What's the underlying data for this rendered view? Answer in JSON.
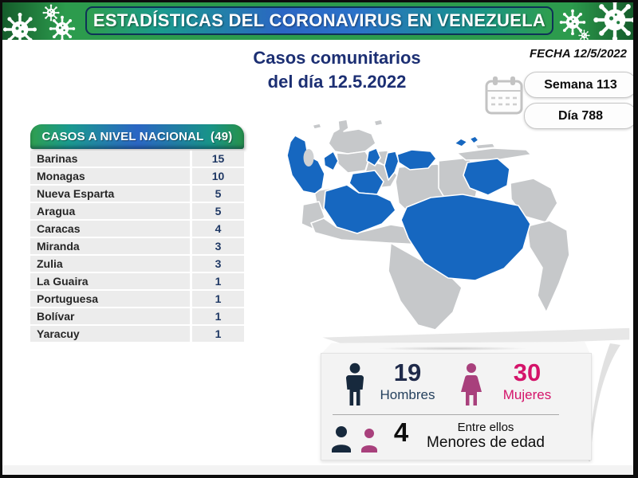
{
  "header": {
    "title": "ESTADÍSTICAS DEL CORONAVIRUS EN VENEZUELA"
  },
  "titles": {
    "line1": "Casos comunitarios",
    "line2": "del día 12.5.2022"
  },
  "meta": {
    "fecha": "FECHA 12/5/2022",
    "semana": "Semana 113",
    "dia": "Día 788"
  },
  "table": {
    "title": "CASOS A NIVEL NACIONAL  (49)",
    "total": 49,
    "rows": [
      {
        "state": "Barinas",
        "cases": 15
      },
      {
        "state": "Monagas",
        "cases": 10
      },
      {
        "state": "Nueva Esparta",
        "cases": 5
      },
      {
        "state": "Aragua",
        "cases": 5
      },
      {
        "state": "Caracas",
        "cases": 4
      },
      {
        "state": "Miranda",
        "cases": 3
      },
      {
        "state": "Zulia",
        "cases": 3
      },
      {
        "state": "La Guaira",
        "cases": 1
      },
      {
        "state": "Portuguesa",
        "cases": 1
      },
      {
        "state": "Bolívar",
        "cases": 1
      },
      {
        "state": "Yaracuy",
        "cases": 1
      }
    ]
  },
  "map": {
    "country": "Venezuela",
    "highlighted_states": [
      "Zulia",
      "Yaracuy",
      "Aragua",
      "Caracas",
      "Miranda",
      "La Guaira",
      "Portuguesa",
      "Barinas",
      "Monagas",
      "Nueva Esparta",
      "Bolívar"
    ]
  },
  "summary": {
    "men": "19",
    "men_label": "Hombres",
    "women": "30",
    "women_label": "Mujeres",
    "minors": "4",
    "minors_note_line1": "Entre ellos",
    "minors_note_line2": "Menores de edad"
  },
  "colors": {
    "banner_green": "#2c9b4d",
    "banner_blue": "#2b66c4",
    "title_navy": "#1c2f73",
    "table_number_navy": "#1f3864",
    "map_base": "#c6c8ca",
    "map_highlight": "#1667c0",
    "men_navy": "#17293d",
    "women_icon_pink": "#a8407c",
    "women_pink": "#d4146a"
  }
}
